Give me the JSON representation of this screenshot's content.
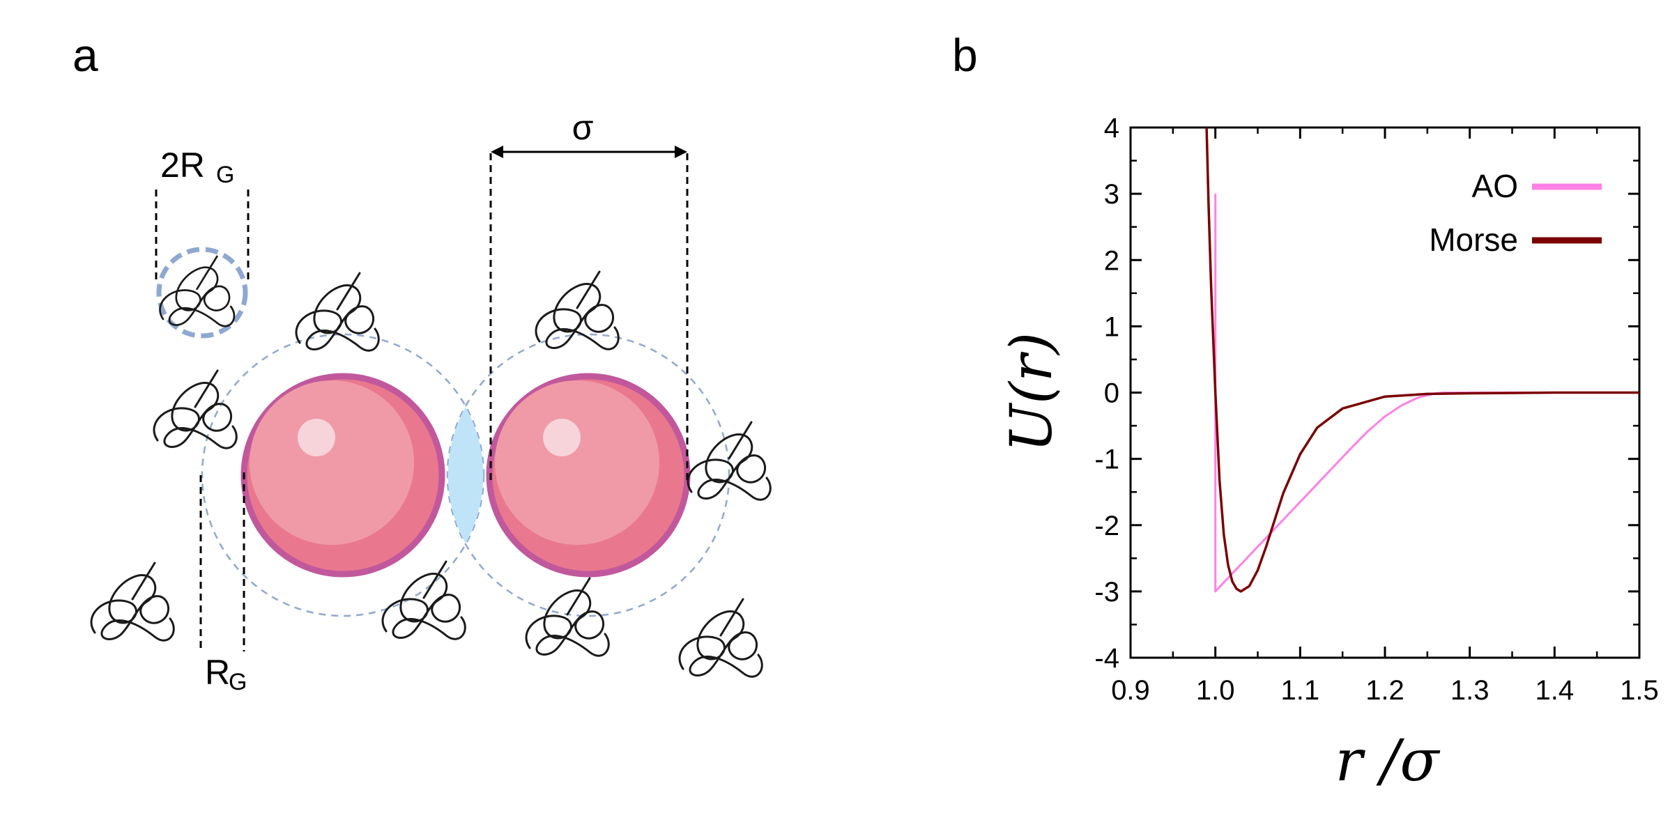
{
  "panel_a": {
    "letter": "a",
    "dim_2rg_main": "2R",
    "dim_2rg_sub": "G",
    "dim_rg_main": "R",
    "dim_rg_sub": "G",
    "dim_sigma": "σ",
    "colors": {
      "colloid_fill": "#e9788e",
      "colloid_inner": "#f09aa7",
      "colloid_border": "#c1589c",
      "depletion_shell": "#8fa8d0",
      "overlap_fill": "#bfe4f7",
      "polymer_stroke": "#1a1a1a"
    },
    "icons": [
      "polymer-coil-icon",
      "colloid-sphere-icon"
    ]
  },
  "panel_b": {
    "letter": "b"
  },
  "chart_data": {
    "type": "line",
    "xlabel": "r /σ",
    "ylabel": "U(r)",
    "xlim": [
      0.9,
      1.5
    ],
    "ylim": [
      -4,
      4
    ],
    "x_ticks": [
      "0.9",
      "1.0",
      "1.1",
      "1.2",
      "1.3",
      "1.4",
      "1.5"
    ],
    "y_ticks": [
      "4",
      "3",
      "2",
      "1",
      "0",
      "-1",
      "-2",
      "-3",
      "-4"
    ],
    "grid": false,
    "legend_position": "top-right",
    "series": [
      {
        "name": "AO",
        "color": "#ff80e6",
        "points": [
          [
            1.0,
            3.0
          ],
          [
            1.0,
            -3.0
          ],
          [
            1.02,
            -2.73
          ],
          [
            1.04,
            -2.46
          ],
          [
            1.06,
            -2.19
          ],
          [
            1.08,
            -1.92
          ],
          [
            1.1,
            -1.65
          ],
          [
            1.12,
            -1.38
          ],
          [
            1.14,
            -1.11
          ],
          [
            1.16,
            -0.84
          ],
          [
            1.18,
            -0.58
          ],
          [
            1.2,
            -0.36
          ],
          [
            1.22,
            -0.19
          ],
          [
            1.24,
            -0.07
          ],
          [
            1.26,
            -0.01
          ],
          [
            1.27,
            0.0
          ],
          [
            1.5,
            0.0
          ]
        ]
      },
      {
        "name": "Morse",
        "color": "#7a0000",
        "points": [
          [
            0.9897,
            4.0
          ],
          [
            0.992,
            2.85
          ],
          [
            0.995,
            1.6
          ],
          [
            1.0,
            0.0
          ],
          [
            1.005,
            -1.33
          ],
          [
            1.01,
            -2.14
          ],
          [
            1.015,
            -2.6
          ],
          [
            1.02,
            -2.85
          ],
          [
            1.025,
            -2.96
          ],
          [
            1.03,
            -3.0
          ],
          [
            1.04,
            -2.92
          ],
          [
            1.05,
            -2.68
          ],
          [
            1.06,
            -2.32
          ],
          [
            1.08,
            -1.52
          ],
          [
            1.1,
            -0.93
          ],
          [
            1.12,
            -0.53
          ],
          [
            1.15,
            -0.24
          ],
          [
            1.2,
            -0.06
          ],
          [
            1.25,
            -0.02
          ],
          [
            1.3,
            -0.01
          ],
          [
            1.4,
            0.0
          ],
          [
            1.5,
            0.0
          ]
        ]
      }
    ]
  }
}
